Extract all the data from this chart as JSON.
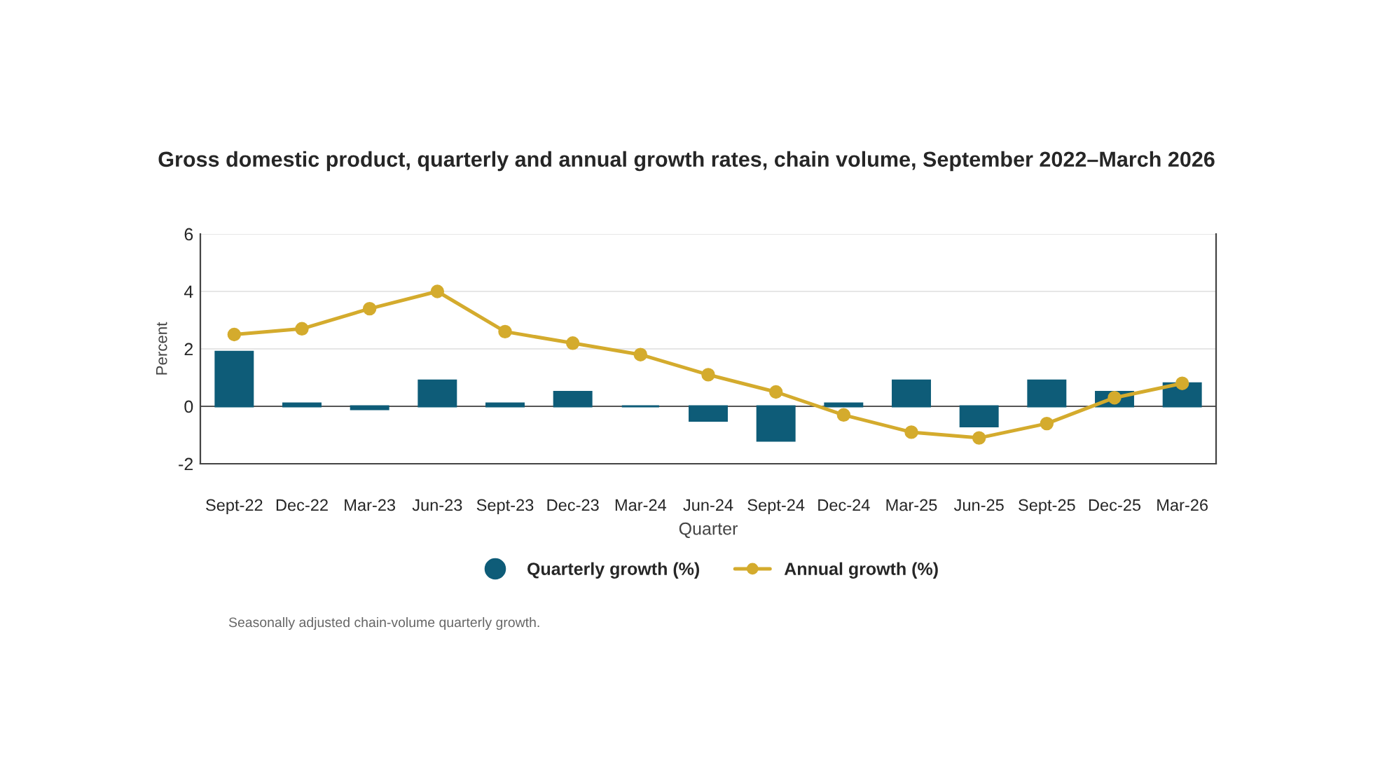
{
  "chart_data": {
    "type": "bar",
    "title": "Gross domestic product, quarterly and annual growth rates, chain volume, September 2022–March 2026",
    "xlabel": "Quarter",
    "ylabel": "Percent",
    "categories": [
      "Sept-22",
      "Dec-22",
      "Mar-23",
      "Jun-23",
      "Sept-23",
      "Dec-23",
      "Mar-24",
      "Jun-24",
      "Sept-24",
      "Dec-24",
      "Mar-25",
      "Jun-25",
      "Sept-25",
      "Dec-25",
      "Mar-26"
    ],
    "series": [
      {
        "name": "Quarterly growth (%)",
        "color": "#0e5c78",
        "values": [
          1.9,
          0.1,
          -0.1,
          0.9,
          0.1,
          0.5,
          0.0,
          -0.5,
          -1.2,
          0.1,
          0.9,
          -0.7,
          0.9,
          0.5,
          0.8
        ]
      },
      {
        "name": "Annual growth (%)",
        "type": "line",
        "color": "#d4ab2d",
        "marker": "circle",
        "values": [
          2.5,
          2.7,
          3.4,
          4.0,
          2.6,
          2.2,
          1.8,
          1.1,
          0.5,
          -0.3,
          -0.9,
          -1.1,
          -0.6,
          0.3,
          0.8
        ]
      }
    ],
    "ylim": [
      -2,
      6
    ],
    "yticks": [
      -2,
      0,
      2,
      4,
      6
    ],
    "grid": "y",
    "legend": "bottom",
    "ref_lines": [
      {
        "axis": "y",
        "value": 0,
        "color": "#555555"
      }
    ],
    "annotations": [
      "Seasonally adjusted chain-volume quarterly growth."
    ]
  }
}
